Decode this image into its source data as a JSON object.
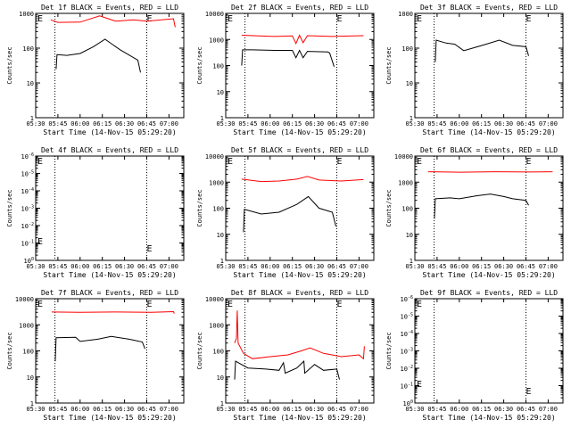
{
  "figure": {
    "background": "#ffffff",
    "axis_color": "#000000",
    "events_color": "#000000",
    "lld_color": "#ff0000"
  },
  "chart_data": [
    {
      "type": "line",
      "title": "Det 1f BLACK = Events, RED = LLD",
      "xlabel": "Start Time (14-Nov-15 05:29:20)",
      "ylabel": "Counts/sec",
      "xticks": [
        "05:30",
        "05:45",
        "06:00",
        "06:15",
        "06:30",
        "06:45",
        "07:00"
      ],
      "xlim": [
        "05:30",
        "07:10"
      ],
      "ylog": true,
      "ylim": [
        1,
        1000
      ],
      "yticks": [
        "1",
        "10",
        "100",
        "1000"
      ],
      "marker_lines": [
        "05:43",
        "06:45"
      ],
      "marker_labels": [
        "E",
        "E"
      ],
      "series": [
        {
          "name": "LLD",
          "color": "#ff0000",
          "values": [
            [
              5.67,
              650
            ],
            [
              5.75,
              550
            ],
            [
              6.0,
              560
            ],
            [
              6.22,
              850
            ],
            [
              6.4,
              600
            ],
            [
              6.6,
              650
            ],
            [
              6.75,
              600
            ],
            [
              7.05,
              700
            ],
            [
              7.07,
              400
            ]
          ]
        },
        {
          "name": "Events",
          "color": "#000000",
          "values": [
            [
              5.73,
              25
            ],
            [
              5.74,
              65
            ],
            [
              5.85,
              62
            ],
            [
              6.0,
              70
            ],
            [
              6.15,
              110
            ],
            [
              6.28,
              180
            ],
            [
              6.45,
              90
            ],
            [
              6.65,
              45
            ],
            [
              6.68,
              20
            ]
          ]
        }
      ]
    },
    {
      "type": "line",
      "title": "Det 2f BLACK = Events, RED = LLD",
      "xlabel": "Start Time (14-Nov-15 05:29:20)",
      "ylabel": "Counts/sec",
      "xticks": [
        "05:30",
        "05:45",
        "06:00",
        "06:15",
        "06:30",
        "06:45",
        "07:00"
      ],
      "xlim": [
        "05:30",
        "07:10"
      ],
      "ylog": true,
      "ylim": [
        1,
        10000
      ],
      "yticks": [
        "1",
        "10",
        "100",
        "1000",
        "10000"
      ],
      "marker_lines": [
        "05:43",
        "06:45"
      ],
      "marker_labels": [
        "E",
        "E"
      ],
      "series": [
        {
          "name": "LLD",
          "color": "#ff0000",
          "values": [
            [
              5.68,
              1450
            ],
            [
              5.9,
              1350
            ],
            [
              6.05,
              1300
            ],
            [
              6.25,
              1380
            ],
            [
              6.29,
              700
            ],
            [
              6.33,
              1450
            ],
            [
              6.37,
              750
            ],
            [
              6.42,
              1400
            ],
            [
              6.7,
              1300
            ],
            [
              7.05,
              1400
            ]
          ]
        },
        {
          "name": "Events",
          "color": "#000000",
          "values": [
            [
              5.68,
              100
            ],
            [
              5.69,
              400
            ],
            [
              5.8,
              400
            ],
            [
              6.05,
              380
            ],
            [
              6.25,
              380
            ],
            [
              6.29,
              200
            ],
            [
              6.33,
              380
            ],
            [
              6.37,
              200
            ],
            [
              6.42,
              350
            ],
            [
              6.65,
              330
            ],
            [
              6.67,
              300
            ],
            [
              6.72,
              90
            ]
          ]
        }
      ]
    },
    {
      "type": "line",
      "title": "Det 3f BLACK = Events, RED = LLD",
      "xlabel": "Start Time (14-Nov-15 05:29:20)",
      "ylabel": "Counts/sec",
      "xticks": [
        "05:30",
        "05:45",
        "06:00",
        "06:15",
        "06:30",
        "06:45",
        "07:00"
      ],
      "xlim": [
        "05:30",
        "07:10"
      ],
      "ylog": true,
      "ylim": [
        1,
        1000
      ],
      "yticks": [
        "1",
        "10",
        "100",
        "1000"
      ],
      "marker_lines": [
        "05:43",
        "06:45"
      ],
      "marker_labels": [
        "E",
        "E"
      ],
      "series": [
        {
          "name": "Events",
          "color": "#000000",
          "values": [
            [
              5.73,
              40
            ],
            [
              5.74,
              170
            ],
            [
              5.85,
              140
            ],
            [
              5.95,
              130
            ],
            [
              6.05,
              85
            ],
            [
              6.15,
              100
            ],
            [
              6.3,
              130
            ],
            [
              6.45,
              170
            ],
            [
              6.6,
              120
            ],
            [
              6.75,
              110
            ],
            [
              6.78,
              60
            ]
          ]
        }
      ]
    },
    {
      "type": "line",
      "title": "Det 4f BLACK = Events, RED = LLD",
      "xlabel": "Start Time (14-Nov-15 05:29:20)",
      "ylabel": "Counts/sec",
      "xticks": [
        "05:30",
        "05:45",
        "06:00",
        "06:15",
        "06:30",
        "06:45",
        "07:00"
      ],
      "xlim": [
        "05:30",
        "07:10"
      ],
      "ylog": true,
      "ylim": [
        1,
        1e-06
      ],
      "yticks": [
        "10^0",
        "10^-1",
        "10^-2",
        "10^-3",
        "10^-4",
        "10^-5",
        "10^-6"
      ],
      "marker_lines": [
        "05:43",
        "06:45"
      ],
      "marker_labels": [
        "E",
        "E"
      ],
      "series": []
    },
    {
      "type": "line",
      "title": "Det 5f BLACK = Events, RED = LLD",
      "xlabel": "Start Time (14-Nov-15 05:29:20)",
      "ylabel": "Counts/sec",
      "xticks": [
        "05:30",
        "05:45",
        "06:00",
        "06:15",
        "06:30",
        "06:45",
        "07:00"
      ],
      "xlim": [
        "05:30",
        "07:10"
      ],
      "ylog": true,
      "ylim": [
        1,
        10000
      ],
      "yticks": [
        "1",
        "10",
        "100",
        "1000",
        "10000"
      ],
      "marker_lines": [
        "05:43",
        "06:45"
      ],
      "marker_labels": [
        "E",
        "E"
      ],
      "series": [
        {
          "name": "LLD",
          "color": "#ff0000",
          "values": [
            [
              5.68,
              1300
            ],
            [
              5.9,
              1050
            ],
            [
              6.1,
              1100
            ],
            [
              6.3,
              1300
            ],
            [
              6.42,
              1650
            ],
            [
              6.55,
              1200
            ],
            [
              6.8,
              1100
            ],
            [
              7.05,
              1250
            ]
          ]
        },
        {
          "name": "Events",
          "color": "#000000",
          "values": [
            [
              5.7,
              12
            ],
            [
              5.71,
              90
            ],
            [
              5.9,
              60
            ],
            [
              6.1,
              70
            ],
            [
              6.3,
              140
            ],
            [
              6.43,
              280
            ],
            [
              6.55,
              100
            ],
            [
              6.7,
              70
            ],
            [
              6.74,
              20
            ]
          ]
        }
      ]
    },
    {
      "type": "line",
      "title": "Det 6f BLACK = Events, RED = LLD",
      "xlabel": "Start Time (14-Nov-15 05:29:20)",
      "ylabel": "Counts/sec",
      "xticks": [
        "05:30",
        "05:45",
        "06:00",
        "06:15",
        "06:30",
        "06:45",
        "07:00"
      ],
      "xlim": [
        "05:30",
        "07:10"
      ],
      "ylog": true,
      "ylim": [
        1,
        10000
      ],
      "yticks": [
        "1",
        "10",
        "100",
        "1000",
        "10000"
      ],
      "marker_lines": [
        "05:43",
        "06:45"
      ],
      "marker_labels": [
        "E",
        "E"
      ],
      "series": [
        {
          "name": "LLD",
          "color": "#ff0000",
          "values": [
            [
              5.65,
              2500
            ],
            [
              6.0,
              2400
            ],
            [
              6.4,
              2500
            ],
            [
              6.8,
              2450
            ],
            [
              7.05,
              2500
            ]
          ]
        },
        {
          "name": "Events",
          "color": "#000000",
          "values": [
            [
              5.72,
              40
            ],
            [
              5.73,
              230
            ],
            [
              5.9,
              250
            ],
            [
              6.0,
              230
            ],
            [
              6.2,
              300
            ],
            [
              6.35,
              350
            ],
            [
              6.5,
              280
            ],
            [
              6.6,
              230
            ],
            [
              6.75,
              200
            ],
            [
              6.78,
              130
            ]
          ]
        }
      ]
    },
    {
      "type": "line",
      "title": "Det 7f BLACK = Events, RED = LLD",
      "xlabel": "Start Time (14-Nov-15 05:29:20)",
      "ylabel": "Counts/sec",
      "xticks": [
        "05:30",
        "05:45",
        "06:00",
        "06:15",
        "06:30",
        "06:45",
        "07:00"
      ],
      "xlim": [
        "05:30",
        "07:10"
      ],
      "ylog": true,
      "ylim": [
        1,
        10000
      ],
      "yticks": [
        "1",
        "10",
        "100",
        "1000",
        "10000"
      ],
      "marker_lines": [
        "05:43",
        "06:45"
      ],
      "marker_labels": [
        "E",
        "E"
      ],
      "series": [
        {
          "name": "LLD",
          "color": "#ff0000",
          "values": [
            [
              5.68,
              3100
            ],
            [
              6.0,
              3000
            ],
            [
              6.4,
              3100
            ],
            [
              6.8,
              3000
            ],
            [
              7.05,
              3200
            ],
            [
              7.06,
              2700
            ]
          ]
        },
        {
          "name": "Events",
          "color": "#000000",
          "values": [
            [
              5.72,
              40
            ],
            [
              5.73,
              320
            ],
            [
              5.95,
              330
            ],
            [
              6.0,
              230
            ],
            [
              6.2,
              280
            ],
            [
              6.35,
              360
            ],
            [
              6.55,
              280
            ],
            [
              6.7,
              220
            ],
            [
              6.73,
              120
            ]
          ]
        }
      ]
    },
    {
      "type": "line",
      "title": "Det 8f BLACK = Events, RED = LLD",
      "xlabel": "Start Time (14-Nov-15 05:29:20)",
      "ylabel": "Counts/sec",
      "xticks": [
        "05:30",
        "05:45",
        "06:00",
        "06:15",
        "06:30",
        "06:45",
        "07:00"
      ],
      "xlim": [
        "05:30",
        "07:10"
      ],
      "ylog": true,
      "ylim": [
        1,
        10000
      ],
      "yticks": [
        "1",
        "10",
        "100",
        "1000",
        "10000"
      ],
      "marker_lines": [
        "05:43",
        "06:45"
      ],
      "marker_labels": [
        "E",
        "E"
      ],
      "series": [
        {
          "name": "LLD",
          "color": "#ff0000",
          "values": [
            [
              5.6,
              200
            ],
            [
              5.62,
              300
            ],
            [
              5.63,
              3500
            ],
            [
              5.64,
              200
            ],
            [
              5.7,
              80
            ],
            [
              5.8,
              50
            ],
            [
              6.0,
              60
            ],
            [
              6.2,
              70
            ],
            [
              6.35,
              100
            ],
            [
              6.45,
              130
            ],
            [
              6.6,
              80
            ],
            [
              6.8,
              60
            ],
            [
              7.0,
              70
            ],
            [
              7.05,
              50
            ],
            [
              7.06,
              150
            ]
          ]
        },
        {
          "name": "Events",
          "color": "#000000",
          "values": [
            [
              5.6,
              8
            ],
            [
              5.61,
              40
            ],
            [
              5.75,
              22
            ],
            [
              5.95,
              20
            ],
            [
              6.1,
              18
            ],
            [
              6.15,
              35
            ],
            [
              6.17,
              14
            ],
            [
              6.3,
              22
            ],
            [
              6.38,
              40
            ],
            [
              6.39,
              14
            ],
            [
              6.5,
              30
            ],
            [
              6.6,
              18
            ],
            [
              6.75,
              20
            ],
            [
              6.78,
              8
            ]
          ]
        }
      ]
    },
    {
      "type": "line",
      "title": "Det 9f BLACK = Events, RED = LLD",
      "xlabel": "Start Time (14-Nov-15 05:29:20)",
      "ylabel": "Counts/sec",
      "xticks": [
        "05:30",
        "05:45",
        "06:00",
        "06:15",
        "06:30",
        "06:45",
        "07:00"
      ],
      "xlim": [
        "05:30",
        "07:10"
      ],
      "ylog": true,
      "ylim": [
        1,
        1e-06
      ],
      "yticks": [
        "10^0",
        "10^-1",
        "10^-2",
        "10^-3",
        "10^-4",
        "10^-5",
        "10^-6"
      ],
      "marker_lines": [
        "05:43",
        "06:45"
      ],
      "marker_labels": [
        "E",
        "E"
      ],
      "series": []
    }
  ]
}
